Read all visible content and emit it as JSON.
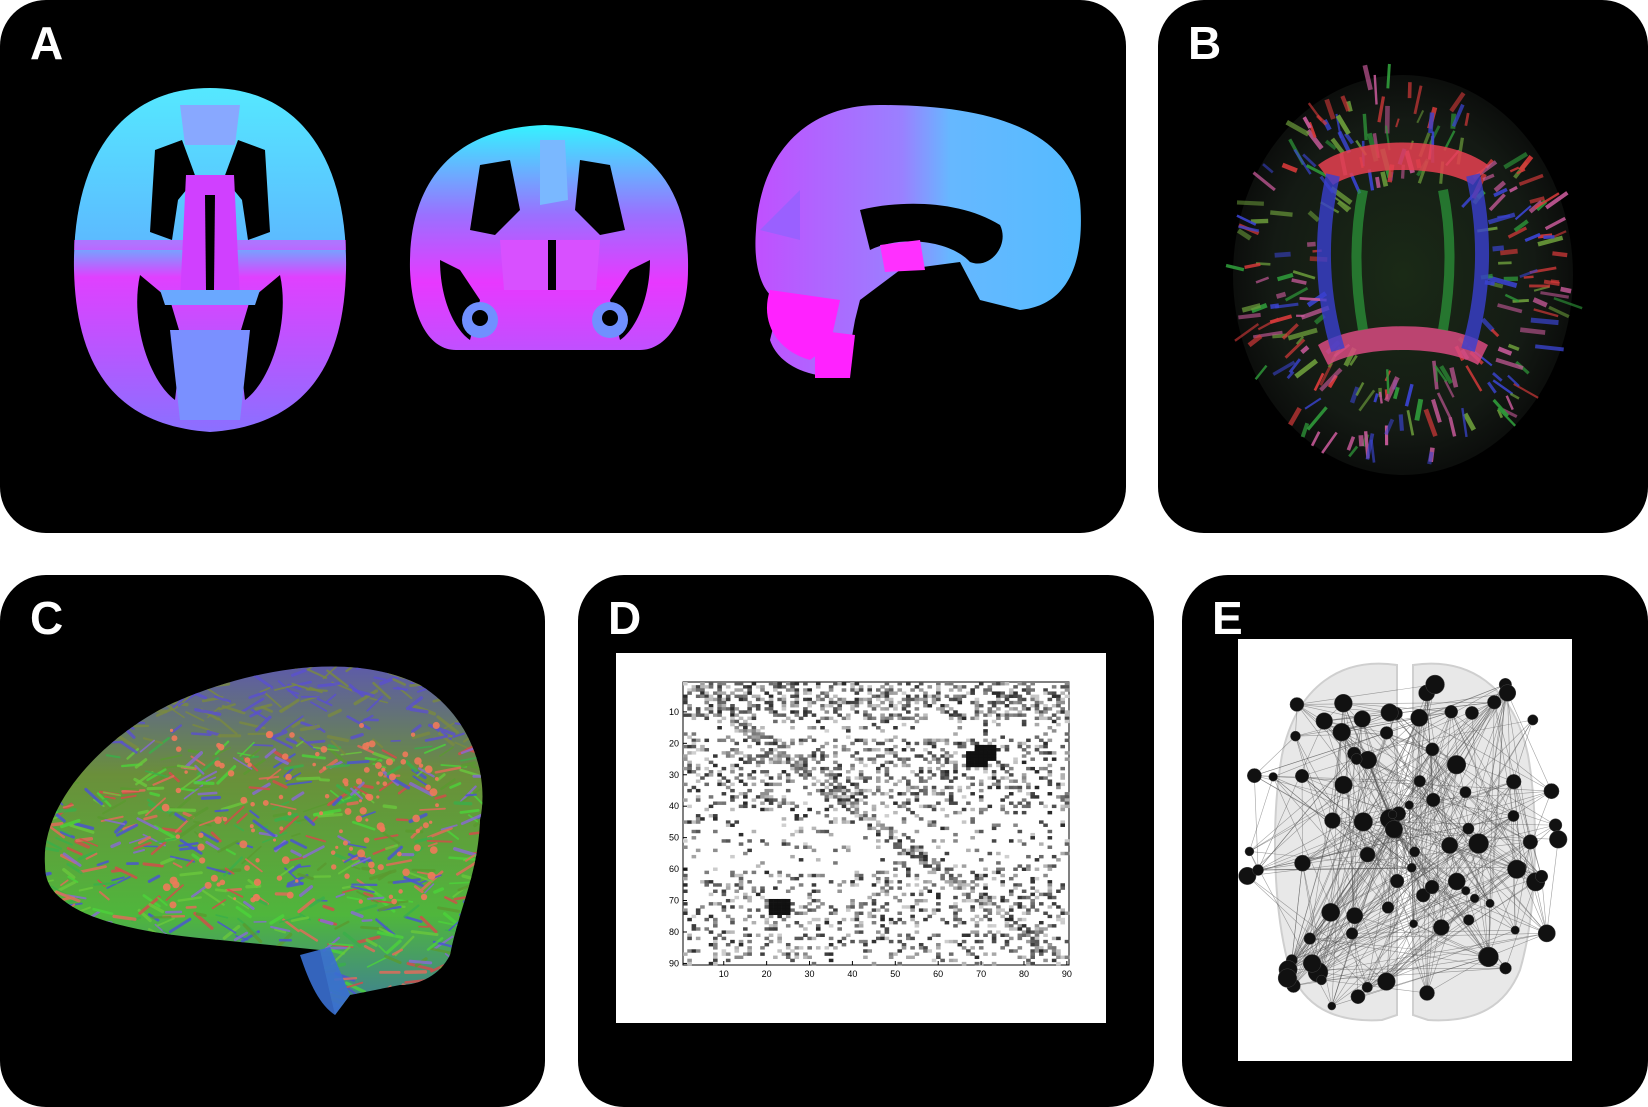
{
  "panels": {
    "a": {
      "label": "A"
    },
    "b": {
      "label": "B"
    },
    "c": {
      "label": "C"
    },
    "d": {
      "label": "D"
    },
    "e": {
      "label": "E"
    }
  },
  "matrix": {
    "x_ticks": [
      "10",
      "20",
      "30",
      "40",
      "50",
      "60",
      "70",
      "80",
      "90"
    ],
    "y_ticks": [
      "10",
      "20",
      "30",
      "40",
      "50",
      "60",
      "70",
      "80",
      "90"
    ],
    "size": 90
  },
  "colors": {
    "background": "#000000",
    "atlas_cyan": "#3ff0ff",
    "atlas_blue": "#66aaff",
    "atlas_violet": "#a066ff",
    "atlas_magenta": "#ff33ff"
  }
}
